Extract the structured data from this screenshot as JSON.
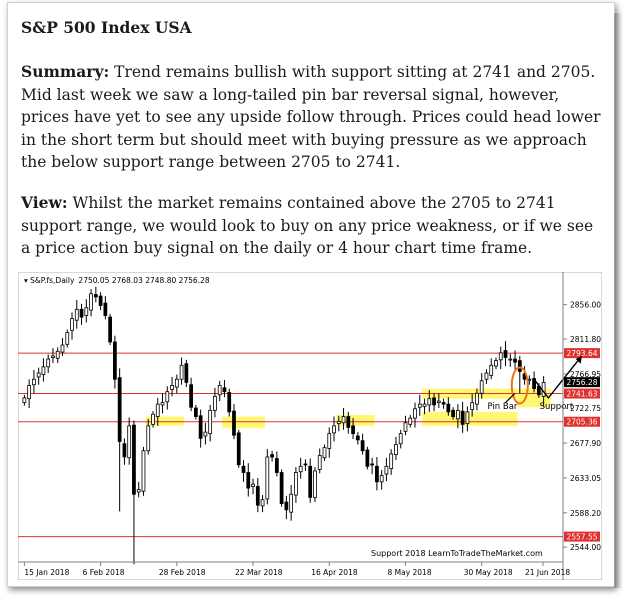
{
  "article": {
    "heading": "S&P 500 Index USA",
    "summary_label": "Summary:",
    "summary_text": " Trend remains bullish with support sitting at 2741 and 2705.  Mid last week we saw a long-tailed pin bar reversal signal, however, prices have yet to see any upside follow through. Prices could head lower in the short term but should meet with buying pressure as we approach the below support range between 2705 to 2741.",
    "view_label": "View:",
    "view_text": " Whilst the market remains contained above the 2705 to 2741 support range, we would look to buy on any price weakness, or if we see a price action buy signal on the daily or 4 hour chart time frame."
  },
  "chart_data": {
    "type": "candlestick",
    "symbol_line": "S&P.fs,Daily",
    "ohlc_readout": "2750.05 2768.03 2748.80 2756.28",
    "x_ticks": [
      "15 Jan 2018",
      "6 Feb 2018",
      "28 Feb 2018",
      "22 Mar 2018",
      "16 Apr 2018",
      "8 May 2018",
      "30 May 2018",
      "21 Jun 2018"
    ],
    "y_ticks": [
      2856.0,
      2811.8,
      2766.95,
      2722.75,
      2677.9,
      2633.05,
      2588.2,
      2544.0
    ],
    "y_tick_labels": [
      "2856.00",
      "2811.80",
      "2766.95",
      "2722.75",
      "2677.90",
      "2633.05",
      "2588.20",
      "2544.00"
    ],
    "ylim": [
      2530,
      2880
    ],
    "horizontal_lines": [
      {
        "value": 2793.64,
        "label": "2793.64",
        "color": "#e03030"
      },
      {
        "value": 2741.63,
        "label": "2741.63",
        "color": "#e03030"
      },
      {
        "value": 2705.36,
        "label": "2705.36",
        "color": "#e03030"
      },
      {
        "value": 2557.55,
        "label": "2557.55",
        "color": "#e03030"
      }
    ],
    "current_price": {
      "value": 2756.28,
      "label": "2756.28"
    },
    "annotations": {
      "pin_bar": "Pin Bar",
      "support": "Support",
      "footer": "Support 2018 LearnToTradeTheMarket.com"
    },
    "zone_color": "#fff200",
    "bull_color": "#ffffff",
    "bear_color": "#000000",
    "circle_color": "#e8761c",
    "closes": [
      2736,
      2752,
      2760,
      2768,
      2776,
      2786,
      2790,
      2796,
      2804,
      2820,
      2838,
      2850,
      2840,
      2852,
      2870,
      2866,
      2855,
      2842,
      2808,
      2760,
      2680,
      2660,
      2700,
      2612,
      2618,
      2668,
      2700,
      2715,
      2728,
      2730,
      2744,
      2752,
      2760,
      2778,
      2756,
      2724,
      2712,
      2684,
      2692,
      2720,
      2738,
      2752,
      2744,
      2718,
      2688,
      2650,
      2640,
      2620,
      2625,
      2598,
      2605,
      2660,
      2660,
      2640,
      2600,
      2592,
      2612,
      2640,
      2648,
      2650,
      2608,
      2642,
      2662,
      2672,
      2690,
      2700,
      2706,
      2712,
      2698,
      2690,
      2682,
      2668,
      2648,
      2650,
      2628,
      2636,
      2648,
      2664,
      2676,
      2690,
      2704,
      2710,
      2722,
      2728,
      2728,
      2735,
      2727,
      2732,
      2728,
      2718,
      2712,
      2720,
      2702,
      2718,
      2730,
      2742,
      2758,
      2768,
      2778,
      2784,
      2794,
      2788,
      2786,
      2782,
      2770,
      2760,
      2760,
      2748,
      2740,
      2756
    ]
  }
}
